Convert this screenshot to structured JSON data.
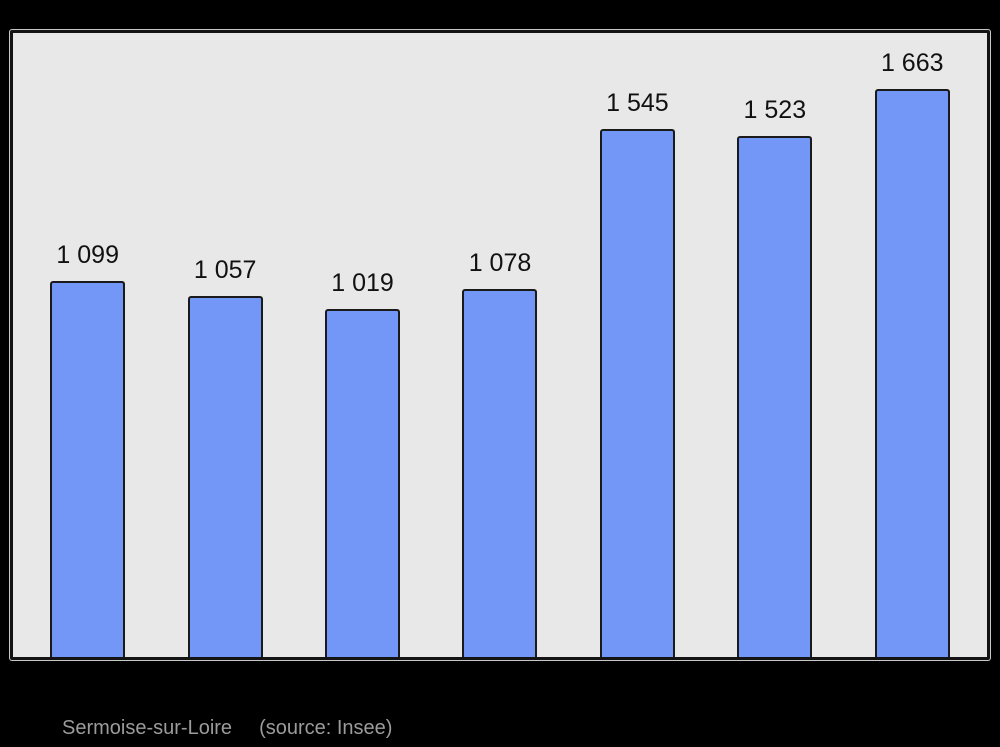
{
  "chart_data": {
    "type": "bar",
    "values": [
      1099,
      1057,
      1019,
      1078,
      1545,
      1523,
      1663
    ],
    "bar_labels": [
      "1 099",
      "1 057",
      "1 019",
      "1 078",
      "1 545",
      "1 523",
      "1 663"
    ],
    "title": "",
    "xlabel": "",
    "ylabel": "",
    "categories_visible": false,
    "ylim": [
      0,
      1825
    ],
    "grid": false,
    "legend": "none",
    "max_value_for_scale": 1663,
    "max_bar_height_pct": 91.1
  },
  "caption": {
    "place": "Sermoise-sur-Loire",
    "source": "(source: Insee)"
  },
  "colors": {
    "page_bg": "#000000",
    "panel_bg": "#e8e8e8",
    "panel_border": "#141414",
    "panel_outline": "#c8c8c8",
    "bar_fill": "#7397f7",
    "bar_border": "#1a1a1a",
    "label_color": "#111111",
    "caption_color": "#9b9b9b"
  }
}
